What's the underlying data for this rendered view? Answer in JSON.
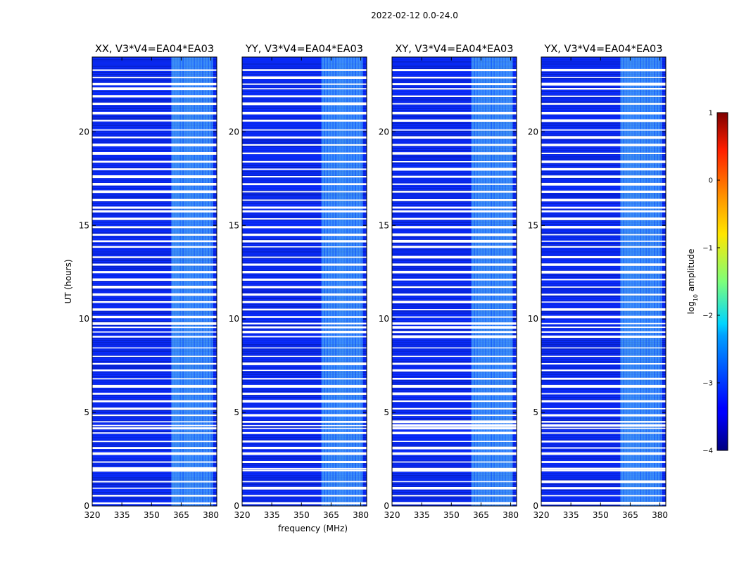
{
  "figure": {
    "suptitle": "2022-02-12 0.0-24.0",
    "colorbar_label": "log",
    "colorbar_label_sub": "10",
    "colorbar_label_rest": " amplitude",
    "colorbar_ticks": [
      "1",
      "0",
      "−1",
      "−2",
      "−3",
      "−4"
    ],
    "colorbar_range": [
      -4,
      1
    ]
  },
  "chart_data": [
    {
      "type": "heatmap",
      "title": "XX, V3*V4=EA04*EA03",
      "xlabel": "",
      "ylabel": "UT (hours)",
      "xlim": [
        320,
        383
      ],
      "ylim": [
        0,
        24
      ],
      "xticks": [
        320,
        335,
        350,
        365,
        380
      ],
      "yticks": [
        0,
        5,
        10,
        15,
        20
      ],
      "xticklabels": [
        "320",
        "335",
        "350",
        "365",
        "380"
      ],
      "yticklabels": [
        "0",
        "5",
        "10",
        "15",
        "20"
      ],
      "bright_band_mhz": [
        360,
        381
      ],
      "flagged_hours": [
        0.15,
        0.55,
        0.95,
        1.3,
        1.9,
        2.0,
        2.35,
        2.8,
        3.1,
        3.45,
        3.9,
        4.15,
        4.3,
        4.5,
        4.85,
        5.2,
        5.6,
        6.0,
        6.4,
        6.8,
        7.25,
        7.6,
        8.0,
        8.45,
        9.05,
        9.3,
        9.55,
        9.75,
        10.1,
        10.5,
        10.9,
        11.3,
        11.7,
        12.1,
        12.5,
        12.9,
        13.3,
        13.85,
        14.15,
        14.5,
        14.9,
        15.35,
        15.75,
        15.95,
        16.35,
        16.8,
        17.2,
        17.6,
        18.0,
        18.4,
        18.85,
        19.3,
        19.7,
        20.1,
        20.6,
        21.0,
        21.5,
        21.9,
        22.3,
        22.55,
        22.9,
        23.3
      ]
    },
    {
      "type": "heatmap",
      "title": "YY, V3*V4=EA04*EA03",
      "xlabel": "frequency (MHz)",
      "ylabel": "",
      "xlim": [
        320,
        383
      ],
      "ylim": [
        0,
        24
      ],
      "xticks": [
        320,
        335,
        350,
        365,
        380
      ],
      "yticks": [
        0,
        5,
        10,
        15,
        20
      ],
      "xticklabels": [
        "320",
        "335",
        "350",
        "365",
        "380"
      ],
      "yticklabels": [
        "0",
        "5",
        "10",
        "15",
        "20"
      ],
      "bright_band_mhz": [
        360,
        381
      ],
      "flagged_hours": [
        0.15,
        0.55,
        0.95,
        1.3,
        1.9,
        2.0,
        2.35,
        2.8,
        3.1,
        3.45,
        3.9,
        4.15,
        4.3,
        4.5,
        4.85,
        5.2,
        5.6,
        6.0,
        6.4,
        6.8,
        7.25,
        7.6,
        8.0,
        8.45,
        9.05,
        9.3,
        9.55,
        9.75,
        10.1,
        10.5,
        10.9,
        11.3,
        11.7,
        12.1,
        12.5,
        12.9,
        13.3,
        13.85,
        14.15,
        14.5,
        14.9,
        15.35,
        15.75,
        15.95,
        16.35,
        16.8,
        17.2,
        17.6,
        18.0,
        18.4,
        18.85,
        19.3,
        19.7,
        20.1,
        20.6,
        21.0,
        21.5,
        21.9,
        22.3,
        22.55,
        22.9,
        23.3
      ]
    },
    {
      "type": "heatmap",
      "title": "XY, V3*V4=EA04*EA03",
      "xlabel": "",
      "ylabel": "",
      "xlim": [
        320,
        383
      ],
      "ylim": [
        0,
        24
      ],
      "xticks": [
        320,
        335,
        350,
        365,
        380
      ],
      "yticks": [
        0,
        5,
        10,
        15,
        20
      ],
      "xticklabels": [
        "320",
        "335",
        "350",
        "365",
        "380"
      ],
      "yticklabels": [
        "0",
        "5",
        "10",
        "15",
        "20"
      ],
      "bright_band_mhz": [
        360,
        381
      ],
      "flagged_hours": [
        0.15,
        0.55,
        0.95,
        1.3,
        1.9,
        2.0,
        2.35,
        2.8,
        3.1,
        3.45,
        3.9,
        4.15,
        4.3,
        4.5,
        4.85,
        5.2,
        5.6,
        6.0,
        6.4,
        6.8,
        7.25,
        7.6,
        8.0,
        8.45,
        9.05,
        9.3,
        9.55,
        9.75,
        10.1,
        10.5,
        10.9,
        11.3,
        11.7,
        12.1,
        12.5,
        12.9,
        13.3,
        13.85,
        14.15,
        14.5,
        14.9,
        15.35,
        15.75,
        15.95,
        16.35,
        16.8,
        17.2,
        17.6,
        18.0,
        18.4,
        18.85,
        19.3,
        19.7,
        20.1,
        20.6,
        21.0,
        21.5,
        21.9,
        22.3,
        22.55,
        22.9,
        23.3
      ]
    },
    {
      "type": "heatmap",
      "title": "YX, V3*V4=EA04*EA03",
      "xlabel": "",
      "ylabel": "",
      "xlim": [
        320,
        383
      ],
      "ylim": [
        0,
        24
      ],
      "xticks": [
        320,
        335,
        350,
        365,
        380
      ],
      "yticks": [
        0,
        5,
        10,
        15,
        20
      ],
      "xticklabels": [
        "320",
        "335",
        "350",
        "365",
        "380"
      ],
      "yticklabels": [
        "0",
        "5",
        "10",
        "15",
        "20"
      ],
      "bright_band_mhz": [
        360,
        381
      ],
      "flagged_hours": [
        0.15,
        0.55,
        0.95,
        1.3,
        1.9,
        2.0,
        2.35,
        2.8,
        3.1,
        3.45,
        3.9,
        4.15,
        4.3,
        4.5,
        4.85,
        5.2,
        5.6,
        6.0,
        6.4,
        6.8,
        7.25,
        7.6,
        8.0,
        8.45,
        9.05,
        9.3,
        9.55,
        9.75,
        10.1,
        10.5,
        10.9,
        11.3,
        11.7,
        12.1,
        12.5,
        12.9,
        13.3,
        13.85,
        14.15,
        14.5,
        14.9,
        15.35,
        15.75,
        15.95,
        16.35,
        16.8,
        17.2,
        17.6,
        18.0,
        18.4,
        18.85,
        19.3,
        19.7,
        20.1,
        20.6,
        21.0,
        21.5,
        21.9,
        22.3,
        22.55,
        22.9,
        23.3
      ]
    }
  ],
  "colors": {
    "background": "#0a2cff",
    "band": "#66e0ff",
    "flag": "#ffffff"
  }
}
